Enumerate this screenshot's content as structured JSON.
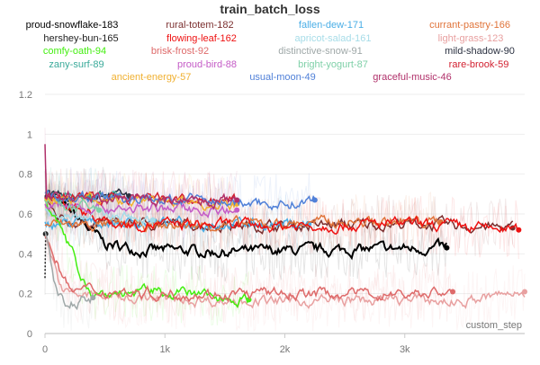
{
  "chart_data": {
    "type": "line",
    "title": "train_batch_loss",
    "xlabel": "custom_step",
    "ylabel": "",
    "xlim": [
      0,
      4000
    ],
    "ylim": [
      0,
      1.2
    ],
    "grid": true,
    "legend_position": "top",
    "x_ticks": [
      {
        "value": 0,
        "label": "0"
      },
      {
        "value": 1000,
        "label": "1k"
      },
      {
        "value": 2000,
        "label": "2k"
      },
      {
        "value": 3000,
        "label": "3k"
      }
    ],
    "y_ticks": [
      {
        "value": 0,
        "label": "0"
      },
      {
        "value": 0.2,
        "label": "0.2"
      },
      {
        "value": 0.4,
        "label": "0.4"
      },
      {
        "value": 0.6,
        "label": "0.6"
      },
      {
        "value": 0.8,
        "label": "0.8"
      },
      {
        "value": 1,
        "label": "1"
      },
      {
        "value": 1.2,
        "label": "1.2"
      }
    ],
    "series": [
      {
        "name": "proud-snowflake-183",
        "color": "#000000",
        "points": [
          [
            0,
            0.69
          ],
          [
            200,
            0.62
          ],
          [
            500,
            0.45
          ],
          [
            800,
            0.42
          ],
          [
            1500,
            0.41
          ],
          [
            2500,
            0.42
          ],
          [
            3300,
            0.43
          ],
          [
            3350,
            0.43
          ]
        ]
      },
      {
        "name": "rural-totem-182",
        "color": "#7b2f2f",
        "points": [
          [
            0,
            0.69
          ],
          [
            100,
            0.56
          ],
          [
            1000,
            0.55
          ],
          [
            2000,
            0.54
          ],
          [
            3000,
            0.55
          ],
          [
            3900,
            0.53
          ]
        ]
      },
      {
        "name": "fallen-dew-171",
        "color": "#4aaee6",
        "points": [
          [
            0,
            0.55
          ],
          [
            500,
            0.56
          ],
          [
            1500,
            0.55
          ],
          [
            2200,
            0.55
          ]
        ]
      },
      {
        "name": "currant-pastry-166",
        "color": "#e0743a",
        "points": [
          [
            0,
            0.55
          ],
          [
            1000,
            0.54
          ],
          [
            2500,
            0.56
          ],
          [
            3300,
            0.56
          ]
        ]
      },
      {
        "name": "hershey-bun-165",
        "color": "#222222",
        "points": [
          [
            0,
            0.29
          ],
          [
            5,
            0.5
          ]
        ]
      },
      {
        "name": "flowing-leaf-162",
        "color": "#ee1111",
        "points": [
          [
            0,
            0.69
          ],
          [
            300,
            0.62
          ],
          [
            600,
            0.55
          ],
          [
            2000,
            0.54
          ],
          [
            3000,
            0.55
          ],
          [
            3950,
            0.52
          ]
        ]
      },
      {
        "name": "apricot-salad-161",
        "color": "#a6dce8",
        "points": [
          [
            0,
            0.6
          ],
          [
            500,
            0.6
          ],
          [
            900,
            0.57
          ]
        ]
      },
      {
        "name": "light-grass-123",
        "color": "#e8a0a0",
        "points": [
          [
            0,
            0.5
          ],
          [
            150,
            0.2
          ],
          [
            1000,
            0.17
          ],
          [
            2000,
            0.16
          ],
          [
            3000,
            0.17
          ],
          [
            3500,
            0.16
          ],
          [
            4000,
            0.21
          ]
        ]
      },
      {
        "name": "comfy-oath-94",
        "color": "#44ee11",
        "points": [
          [
            0,
            0.69
          ],
          [
            300,
            0.3
          ],
          [
            400,
            0.2
          ],
          [
            1000,
            0.21
          ],
          [
            1700,
            0.17
          ]
        ]
      },
      {
        "name": "brisk-frost-92",
        "color": "#de6a6a",
        "points": [
          [
            0,
            0.5
          ],
          [
            200,
            0.22
          ],
          [
            1000,
            0.2
          ],
          [
            2000,
            0.2
          ],
          [
            3000,
            0.2
          ],
          [
            3400,
            0.21
          ]
        ]
      },
      {
        "name": "distinctive-snow-91",
        "color": "#9fa8a8",
        "points": [
          [
            0,
            0.5
          ],
          [
            100,
            0.2
          ],
          [
            150,
            0.15
          ],
          [
            400,
            0.18
          ]
        ]
      },
      {
        "name": "mild-shadow-90",
        "color": "#2a3040",
        "points": [
          [
            0,
            0.69
          ],
          [
            700,
            0.69
          ]
        ]
      },
      {
        "name": "zany-surf-89",
        "color": "#3aaa9a",
        "points": [
          [
            0,
            0.69
          ],
          [
            600,
            0.69
          ]
        ]
      },
      {
        "name": "proud-bird-88",
        "color": "#c45bc6",
        "points": [
          [
            0,
            0.65
          ],
          [
            500,
            0.63
          ],
          [
            1600,
            0.62
          ]
        ]
      },
      {
        "name": "bright-yogurt-87",
        "color": "#7fd0a8",
        "points": [
          [
            0,
            0.66
          ],
          [
            450,
            0.62
          ]
        ]
      },
      {
        "name": "rare-brook-59",
        "color": "#d22030",
        "points": [
          [
            0,
            0.69
          ],
          [
            1600,
            0.66
          ]
        ]
      },
      {
        "name": "ancient-energy-57",
        "color": "#f0b030",
        "points": [
          [
            0,
            0.68
          ],
          [
            1600,
            0.65
          ]
        ]
      },
      {
        "name": "usual-moon-49",
        "color": "#5080d8",
        "points": [
          [
            0,
            0.69
          ],
          [
            1000,
            0.67
          ],
          [
            2000,
            0.65
          ],
          [
            2250,
            0.67
          ]
        ]
      },
      {
        "name": "graceful-music-46",
        "color": "#b0306a",
        "points": [
          [
            0,
            0.96
          ],
          [
            5,
            0.69
          ],
          [
            1000,
            0.67
          ],
          [
            1600,
            0.67
          ]
        ]
      }
    ]
  }
}
